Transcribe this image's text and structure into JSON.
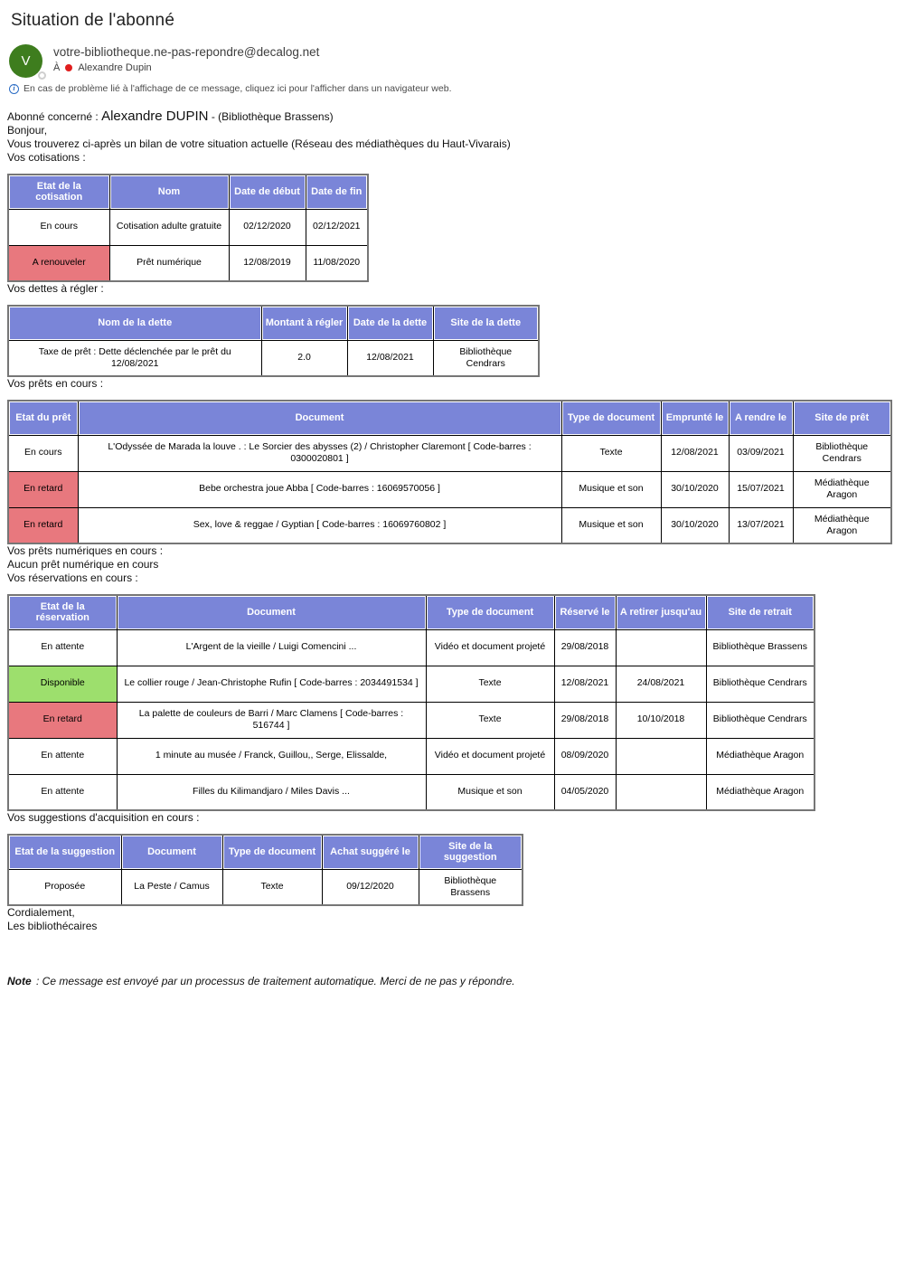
{
  "colors": {
    "table_header_bg": "#7a85d8",
    "table_header_text": "#ffffff",
    "status_red": "#e8787e",
    "status_green": "#9ddf6d",
    "avatar_bg": "#3e7d1e",
    "category_dot": "#e01e1e",
    "info_icon": "#2b6cc4"
  },
  "header": {
    "subject": "Situation de l'abonné",
    "avatar_initial": "V",
    "from_email": "votre-bibliotheque.ne-pas-repondre@decalog.net",
    "to_label": "À",
    "to_name": "Alexandre Dupin",
    "banner_text": "En cas de problème lié à l'affichage de ce message, cliquez ici pour l'afficher dans un navigateur web."
  },
  "intro": {
    "subscriber_label": "Abonné concerné :",
    "subscriber_name": "Alexandre DUPIN",
    "subscriber_site": "- (Bibliothèque Brassens)",
    "greeting": "Bonjour,",
    "body": "Vous trouverez ci-après un bilan de votre situation actuelle (Réseau des médiathèques du Haut-Vivarais)"
  },
  "sections": {
    "cotisations_title": "Vos cotisations :",
    "dettes_title": "Vos dettes à régler :",
    "prets_title": "Vos prêts en cours :",
    "prets_numeriques_title": "Vos prêts numériques en cours :",
    "prets_numeriques_empty": "Aucun prêt numérique en cours",
    "reservations_title": "Vos réservations en cours :",
    "suggestions_title": "Vos suggestions d'acquisition en cours :"
  },
  "tables": {
    "cotisations": {
      "headers": [
        "Etat de la cotisation",
        "Nom",
        "Date de début",
        "Date de fin"
      ],
      "rows": [
        {
          "state": "none",
          "cells": [
            "En cours",
            "Cotisation adulte gratuite",
            "02/12/2020",
            "02/12/2021"
          ]
        },
        {
          "state": "red",
          "cells": [
            "A renouveler",
            "Prêt numérique",
            "12/08/2019",
            "11/08/2020"
          ]
        }
      ]
    },
    "dettes": {
      "headers": [
        "Nom de la dette",
        "Montant à régler",
        "Date de la dette",
        "Site de la dette"
      ],
      "rows": [
        {
          "state": "none",
          "cells": [
            "Taxe de prêt : Dette déclenchée par le prêt du 12/08/2021",
            "2.0",
            "12/08/2021",
            "Bibliothèque Cendrars"
          ]
        }
      ]
    },
    "prets": {
      "headers": [
        "Etat du prêt",
        "Document",
        "Type de document",
        "Emprunté le",
        "A rendre le",
        "Site de prêt"
      ],
      "rows": [
        {
          "state": "none",
          "cells": [
            "En cours",
            "L'Odyssée de Marada la louve . : Le Sorcier des abysses (2) / Christopher Claremont [ Code-barres : 0300020801 ]",
            "Texte",
            "12/08/2021",
            "03/09/2021",
            "Bibliothèque Cendrars"
          ]
        },
        {
          "state": "red",
          "cells": [
            "En retard",
            "Bebe orchestra joue Abba [ Code-barres : 16069570056 ]",
            "Musique et son",
            "30/10/2020",
            "15/07/2021",
            "Médiathèque Aragon"
          ]
        },
        {
          "state": "red",
          "cells": [
            "En retard",
            "Sex, love & reggae / Gyptian [ Code-barres : 16069760802 ]",
            "Musique et son",
            "30/10/2020",
            "13/07/2021",
            "Médiathèque Aragon"
          ]
        }
      ]
    },
    "reservations": {
      "headers": [
        "Etat de la réservation",
        "Document",
        "Type de document",
        "Réservé le",
        "A retirer jusqu'au",
        "Site de retrait"
      ],
      "rows": [
        {
          "state": "none",
          "cells": [
            "En attente",
            "L'Argent de la vieille / Luigi Comencini ...",
            "Vidéo et document projeté",
            "29/08/2018",
            "",
            "Bibliothèque Brassens"
          ]
        },
        {
          "state": "green",
          "cells": [
            "Disponible",
            "Le collier rouge / Jean-Christophe Rufin [ Code-barres : 2034491534 ]",
            "Texte",
            "12/08/2021",
            "24/08/2021",
            "Bibliothèque Cendrars"
          ]
        },
        {
          "state": "red",
          "cells": [
            "En retard",
            "La palette de couleurs de Barri / Marc Clamens [ Code-barres : 516744 ]",
            "Texte",
            "29/08/2018",
            "10/10/2018",
            "Bibliothèque Cendrars"
          ]
        },
        {
          "state": "none",
          "cells": [
            "En attente",
            "1 minute au musée / Franck, Guillou,, Serge, Elissalde,",
            "Vidéo et document projeté",
            "08/09/2020",
            "",
            "Médiathèque Aragon"
          ]
        },
        {
          "state": "none",
          "cells": [
            "En attente",
            "Filles du Kilimandjaro / Miles Davis ...",
            "Musique et son",
            "04/05/2020",
            "",
            "Médiathèque Aragon"
          ]
        }
      ]
    },
    "suggestions": {
      "headers": [
        "Etat de la suggestion",
        "Document",
        "Type de document",
        "Achat suggéré le",
        "Site de la suggestion"
      ],
      "rows": [
        {
          "state": "none",
          "cells": [
            "Proposée",
            "La Peste / Camus",
            "Texte",
            "09/12/2020",
            "Bibliothèque Brassens"
          ]
        }
      ]
    }
  },
  "footer": {
    "closing": "Cordialement,",
    "signature": "Les bibliothécaires",
    "note_label": "Note",
    "note_text": ": Ce message est envoyé par un processus de traitement automatique. Merci de ne pas y répondre."
  }
}
